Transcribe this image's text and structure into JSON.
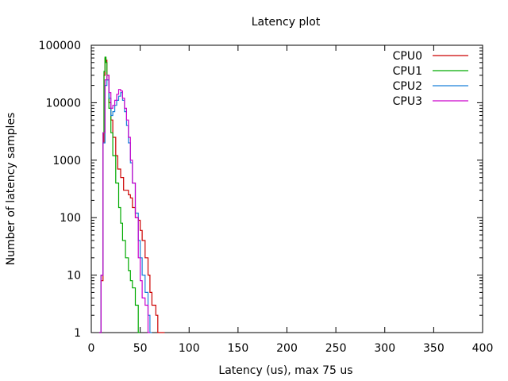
{
  "chart_data": {
    "type": "line",
    "title": "Latency plot",
    "xlabel": "Latency (us), max 75 us",
    "ylabel": "Number of latency samples",
    "xlim": [
      0,
      400
    ],
    "ylim": [
      1,
      100000
    ],
    "yscale": "log",
    "grid": false,
    "legend_position": "top-right",
    "x_ticks": [
      0,
      50,
      100,
      150,
      200,
      250,
      300,
      350,
      400
    ],
    "y_ticks": [
      1,
      10,
      100,
      1000,
      10000,
      100000
    ],
    "x_tick_labels": [
      "0",
      "50",
      "100",
      "150",
      "200",
      "250",
      "300",
      "350",
      "400"
    ],
    "y_tick_labels": [
      "1",
      "10",
      "100",
      "1000",
      "10000",
      "100000"
    ],
    "series": [
      {
        "name": "CPU0",
        "color": "#cc0000",
        "x": [
          8,
          10,
          12,
          13,
          14,
          15,
          16,
          18,
          20,
          22,
          25,
          27,
          30,
          33,
          35,
          38,
          40,
          42,
          45,
          48,
          50,
          52,
          55,
          58,
          60,
          62,
          64,
          66,
          68,
          70,
          72,
          75
        ],
        "y": [
          1,
          8,
          2000,
          30000,
          60000,
          55000,
          30000,
          10000,
          5000,
          2500,
          1200,
          700,
          500,
          300,
          300,
          250,
          220,
          150,
          100,
          90,
          60,
          40,
          20,
          10,
          5,
          3,
          3,
          2,
          1,
          1,
          1,
          1
        ]
      },
      {
        "name": "CPU1",
        "color": "#00aa00",
        "x": [
          8,
          10,
          12,
          13,
          14,
          15,
          16,
          18,
          20,
          22,
          25,
          28,
          30,
          32,
          35,
          38,
          40,
          42,
          45,
          48,
          50
        ],
        "y": [
          1,
          10,
          3000,
          35000,
          62000,
          50000,
          25000,
          8000,
          3000,
          1200,
          400,
          150,
          80,
          40,
          20,
          12,
          8,
          6,
          3,
          1,
          1
        ]
      },
      {
        "name": "CPU2",
        "color": "#1a80d9",
        "x": [
          8,
          10,
          12,
          14,
          16,
          18,
          20,
          22,
          24,
          26,
          28,
          30,
          32,
          34,
          36,
          38,
          40,
          42,
          45,
          48,
          50,
          52,
          55,
          58,
          60,
          62
        ],
        "y": [
          1,
          10,
          2000,
          20000,
          25000,
          12000,
          6000,
          7000,
          9000,
          11000,
          13000,
          15000,
          11000,
          7000,
          4000,
          2000,
          900,
          400,
          120,
          40,
          20,
          10,
          5,
          2,
          1,
          1
        ]
      },
      {
        "name": "CPU3",
        "color": "#cc00cc",
        "x": [
          8,
          10,
          12,
          14,
          16,
          18,
          20,
          22,
          24,
          26,
          28,
          30,
          32,
          34,
          36,
          38,
          40,
          42,
          45,
          48,
          50,
          52,
          55,
          58,
          60
        ],
        "y": [
          1,
          10,
          3000,
          25000,
          30000,
          15000,
          8000,
          9000,
          11000,
          14000,
          17000,
          16000,
          12000,
          8000,
          5000,
          2500,
          1000,
          400,
          100,
          20,
          8,
          4,
          3,
          1,
          1
        ]
      }
    ]
  }
}
